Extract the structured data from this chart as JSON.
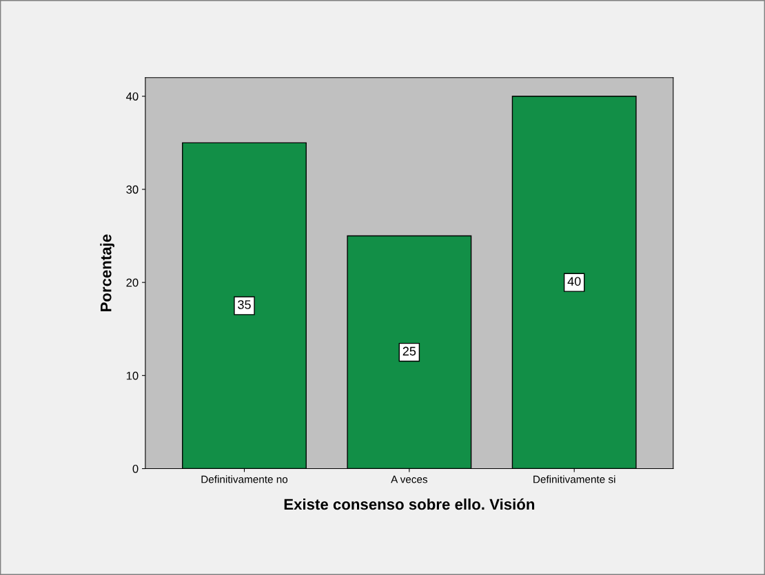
{
  "chart_data": {
    "type": "bar",
    "xlabel": "Existe consenso sobre ello. Visión",
    "ylabel": "Porcentaje",
    "categories": [
      "Definitivamente no",
      "A veces",
      "Definitivamente si"
    ],
    "values": [
      35,
      25,
      40
    ],
    "color": "#128f47",
    "ylim": [
      0,
      42
    ],
    "yticks": [
      0,
      10,
      20,
      30,
      40
    ],
    "data_labels": true,
    "grid": false,
    "legend": false
  }
}
